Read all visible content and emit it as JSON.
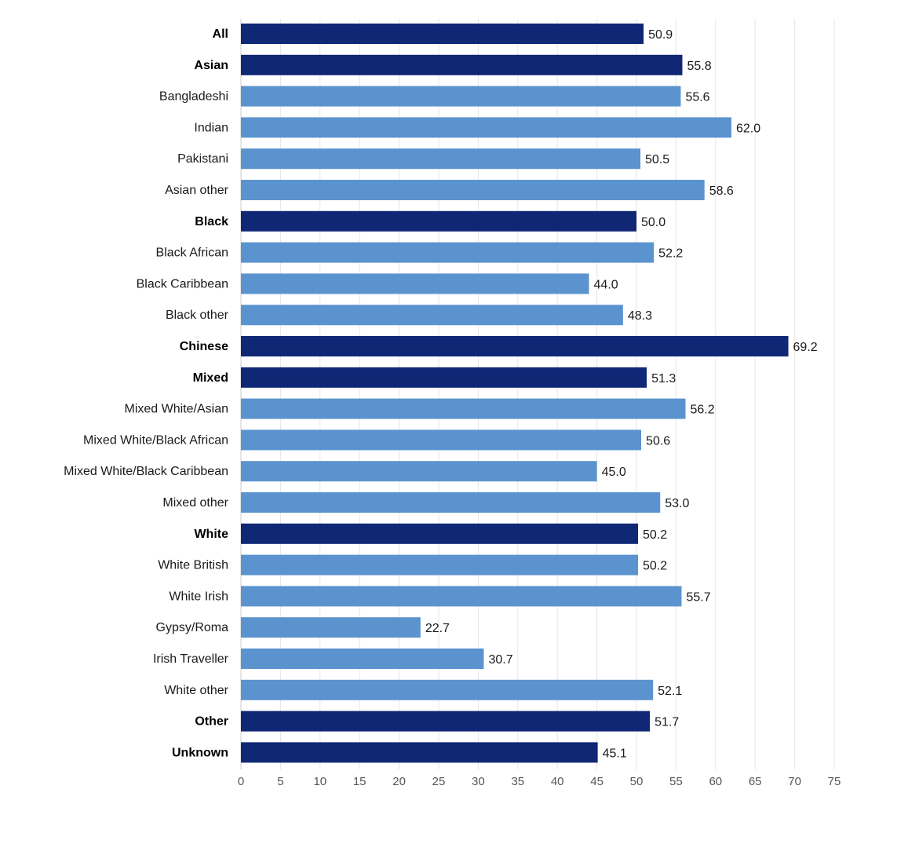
{
  "colors": {
    "group": "#0f2775",
    "subgroup": "#5b93cf"
  },
  "chart_data": {
    "type": "bar",
    "orientation": "horizontal",
    "title": "",
    "xlabel": "",
    "ylabel": "",
    "xlim": [
      0,
      75
    ],
    "x_ticks": [
      "0",
      "5",
      "10",
      "15",
      "20",
      "25",
      "30",
      "35",
      "40",
      "45",
      "50",
      "55",
      "60",
      "65",
      "70",
      "75"
    ],
    "grid": true,
    "categories": [
      "All",
      "Asian",
      "Bangladeshi",
      "Indian",
      "Pakistani",
      "Asian other",
      "Black",
      "Black African",
      "Black Caribbean",
      "Black other",
      "Chinese",
      "Mixed",
      "Mixed White/Asian",
      "Mixed White/Black African",
      "Mixed White/Black Caribbean",
      "Mixed other",
      "White",
      "White British",
      "White Irish",
      "Gypsy/Roma",
      "Irish Traveller",
      "White other",
      "Other",
      "Unknown"
    ],
    "values": [
      50.9,
      55.8,
      55.6,
      62.0,
      50.5,
      58.6,
      50.0,
      52.2,
      44.0,
      48.3,
      69.2,
      51.3,
      56.2,
      50.6,
      45.0,
      53.0,
      50.2,
      50.2,
      55.7,
      22.7,
      30.7,
      52.1,
      51.7,
      45.1
    ],
    "value_labels": [
      "50.9",
      "55.8",
      "55.6",
      "62.0",
      "50.5",
      "58.6",
      "50.0",
      "52.2",
      "44.0",
      "48.3",
      "69.2",
      "51.3",
      "56.2",
      "50.6",
      "45.0",
      "53.0",
      "50.2",
      "50.2",
      "55.7",
      "22.7",
      "30.7",
      "52.1",
      "51.7",
      "45.1"
    ],
    "is_group": [
      true,
      true,
      false,
      false,
      false,
      false,
      true,
      false,
      false,
      false,
      true,
      true,
      false,
      false,
      false,
      false,
      true,
      false,
      false,
      false,
      false,
      false,
      true,
      true
    ]
  }
}
